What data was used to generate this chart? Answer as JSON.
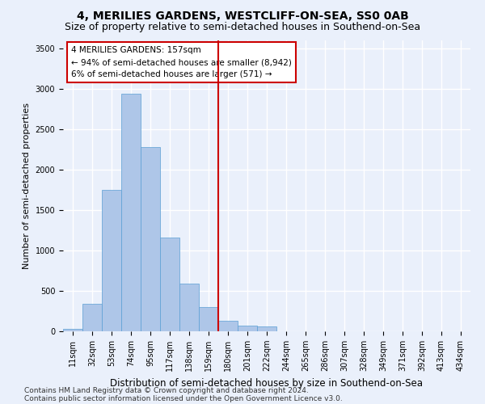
{
  "title": "4, MERILIES GARDENS, WESTCLIFF-ON-SEA, SS0 0AB",
  "subtitle": "Size of property relative to semi-detached houses in Southend-on-Sea",
  "xlabel": "Distribution of semi-detached houses by size in Southend-on-Sea",
  "ylabel": "Number of semi-detached properties",
  "bar_color": "#aec6e8",
  "bar_edge_color": "#5a9fd4",
  "vline_color": "#cc0000",
  "vline_bin_index": 7.5,
  "annotation_title": "4 MERILIES GARDENS: 157sqm",
  "annotation_line1": "← 94% of semi-detached houses are smaller (8,942)",
  "annotation_line2": "6% of semi-detached houses are larger (571) →",
  "annotation_box_color": "#ffffff",
  "annotation_box_edge": "#cc0000",
  "bins": [
    "11sqm",
    "32sqm",
    "53sqm",
    "74sqm",
    "95sqm",
    "117sqm",
    "138sqm",
    "159sqm",
    "180sqm",
    "201sqm",
    "222sqm",
    "244sqm",
    "265sqm",
    "286sqm",
    "307sqm",
    "328sqm",
    "349sqm",
    "371sqm",
    "392sqm",
    "413sqm",
    "434sqm"
  ],
  "values": [
    30,
    340,
    1750,
    2940,
    2280,
    1160,
    590,
    300,
    130,
    75,
    60,
    0,
    0,
    0,
    0,
    0,
    0,
    0,
    0,
    0,
    0
  ],
  "ylim": [
    0,
    3600
  ],
  "yticks": [
    0,
    500,
    1000,
    1500,
    2000,
    2500,
    3000,
    3500
  ],
  "footer1": "Contains HM Land Registry data © Crown copyright and database right 2024.",
  "footer2": "Contains public sector information licensed under the Open Government Licence v3.0.",
  "bg_color": "#eaf0fb",
  "plot_bg_color": "#eaf0fb",
  "grid_color": "#ffffff",
  "title_fontsize": 10,
  "subtitle_fontsize": 9,
  "xlabel_fontsize": 8.5,
  "ylabel_fontsize": 8,
  "tick_fontsize": 7,
  "footer_fontsize": 6.5,
  "annotation_fontsize": 7.5
}
